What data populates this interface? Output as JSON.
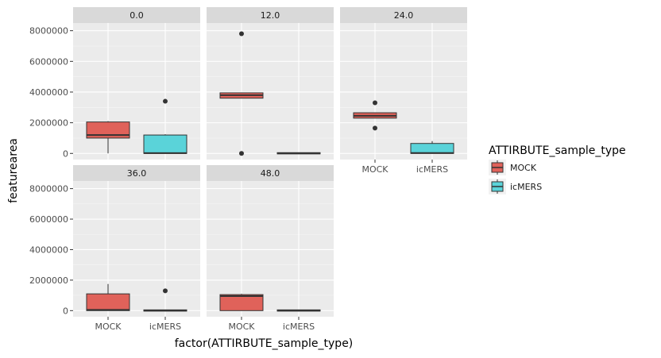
{
  "chart_data": {
    "type": "box",
    "xlabel": "factor(ATTIRBUTE_sample_type)",
    "ylabel": "featurearea",
    "y_ticks": [
      "0",
      "2000000",
      "4000000",
      "6000000",
      "8000000"
    ],
    "y_tick_values": [
      0,
      2000000,
      4000000,
      6000000,
      8000000
    ],
    "ylim": [
      -400000,
      8500000
    ],
    "categories": [
      "MOCK",
      "icMERS"
    ],
    "colors": {
      "MOCK": "#E0625A",
      "icMERS": "#5AD3D9"
    },
    "legend": {
      "title": "ATTIRBUTE_sample_type",
      "entries": [
        "MOCK",
        "icMERS"
      ],
      "placement": "right"
    },
    "facets": [
      {
        "label": "0.0",
        "boxes": [
          {
            "category": "MOCK",
            "q1": 1000000,
            "median": 1200000,
            "q3": 2050000,
            "whisker_low": 0,
            "whisker_high": 2100000,
            "outliers": []
          },
          {
            "category": "icMERS",
            "q1": 0,
            "median": 20000,
            "q3": 1200000,
            "whisker_low": 0,
            "whisker_high": 1250000,
            "outliers": [
              3400000
            ]
          }
        ]
      },
      {
        "label": "12.0",
        "boxes": [
          {
            "category": "MOCK",
            "q1": 3600000,
            "median": 3800000,
            "q3": 3950000,
            "whisker_low": 3600000,
            "whisker_high": 3950000,
            "outliers": [
              7800000,
              0
            ]
          },
          {
            "category": "icMERS",
            "q1": 0,
            "median": 0,
            "q3": 50000,
            "whisker_low": 0,
            "whisker_high": 50000,
            "outliers": []
          }
        ]
      },
      {
        "label": "24.0",
        "boxes": [
          {
            "category": "MOCK",
            "q1": 2300000,
            "median": 2450000,
            "q3": 2650000,
            "whisker_low": 2300000,
            "whisker_high": 2650000,
            "outliers": [
              3300000,
              1650000
            ]
          },
          {
            "category": "icMERS",
            "q1": 0,
            "median": 30000,
            "q3": 650000,
            "whisker_low": 0,
            "whisker_high": 800000,
            "outliers": []
          }
        ]
      },
      {
        "label": "36.0",
        "boxes": [
          {
            "category": "MOCK",
            "q1": 0,
            "median": 50000,
            "q3": 1100000,
            "whisker_low": 0,
            "whisker_high": 1750000,
            "outliers": []
          },
          {
            "category": "icMERS",
            "q1": 0,
            "median": 0,
            "q3": 50000,
            "whisker_low": 0,
            "whisker_high": 50000,
            "outliers": [
              1300000
            ]
          }
        ]
      },
      {
        "label": "48.0",
        "boxes": [
          {
            "category": "MOCK",
            "q1": 0,
            "median": 950000,
            "q3": 1050000,
            "whisker_low": 0,
            "whisker_high": 1100000,
            "outliers": []
          },
          {
            "category": "icMERS",
            "q1": 0,
            "median": 0,
            "q3": 50000,
            "whisker_low": 0,
            "whisker_high": 50000,
            "outliers": []
          }
        ]
      }
    ]
  }
}
